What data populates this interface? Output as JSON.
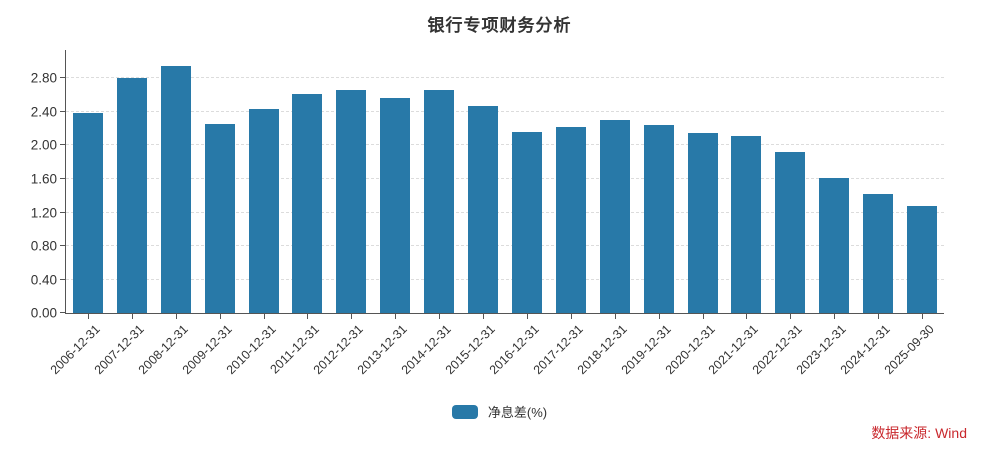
{
  "title": "银行专项财务分析",
  "legend": {
    "label": "净息差(%)",
    "swatch_color": "#2879a8"
  },
  "source_label": "数据来源: Wind",
  "colors": {
    "bar": "#2879a8",
    "axis": "#555555",
    "grid": "#dcdcdc",
    "text": "#333333",
    "source_text": "#c9282d"
  },
  "chart_data": {
    "type": "bar",
    "title": "银行专项财务分析",
    "series_name": "净息差(%)",
    "categories": [
      "2006-12-31",
      "2007-12-31",
      "2008-12-31",
      "2009-12-31",
      "2010-12-31",
      "2011-12-31",
      "2012-12-31",
      "2013-12-31",
      "2014-12-31",
      "2015-12-31",
      "2016-12-31",
      "2017-12-31",
      "2018-12-31",
      "2019-12-31",
      "2020-12-31",
      "2021-12-31",
      "2022-12-31",
      "2023-12-31",
      "2024-12-31",
      "2025-09-30"
    ],
    "values": [
      2.39,
      2.8,
      2.95,
      2.26,
      2.44,
      2.61,
      2.66,
      2.57,
      2.66,
      2.47,
      2.16,
      2.22,
      2.3,
      2.24,
      2.15,
      2.11,
      1.92,
      1.61,
      1.42,
      1.28
    ],
    "xlabel": "",
    "ylabel": "",
    "ylim": [
      0,
      3.14
    ],
    "yticks": [
      0.0,
      0.4,
      0.8,
      1.2,
      1.6,
      2.0,
      2.4,
      2.8
    ],
    "ytick_labels": [
      "0.00",
      "0.40",
      "0.80",
      "1.20",
      "1.60",
      "2.00",
      "2.40",
      "2.80"
    ],
    "grid": "horizontal-dashed",
    "legend_position": "bottom-center",
    "x_label_rotation": -45
  }
}
